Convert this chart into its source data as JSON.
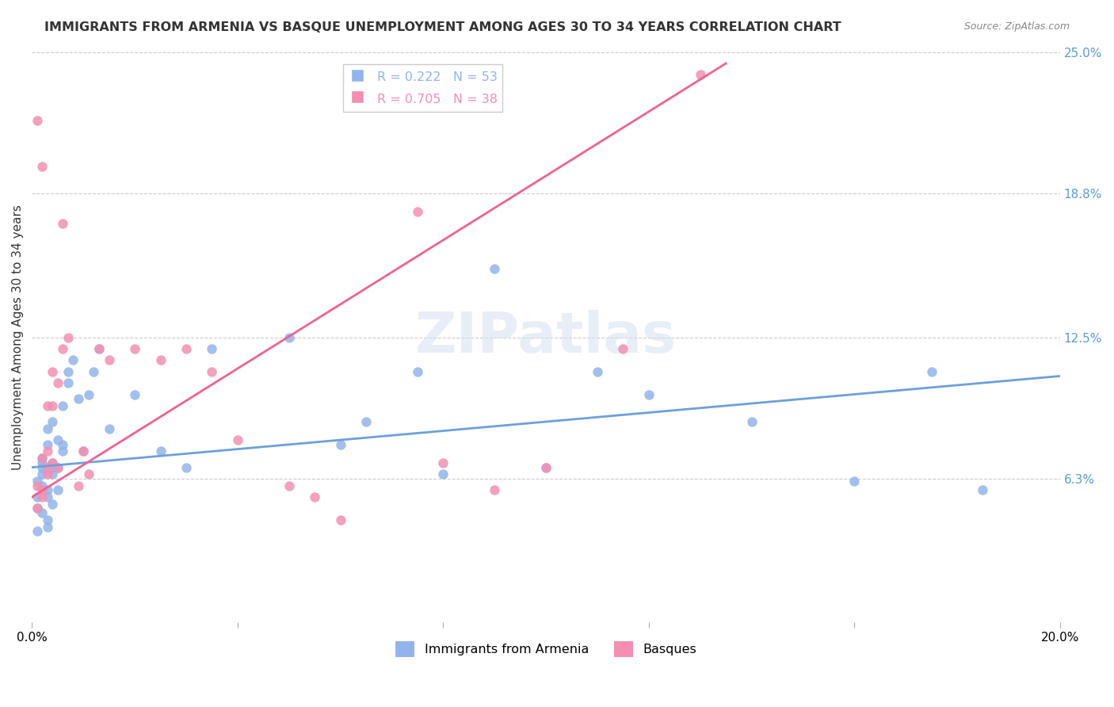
{
  "title": "IMMIGRANTS FROM ARMENIA VS BASQUE UNEMPLOYMENT AMONG AGES 30 TO 34 YEARS CORRELATION CHART",
  "source": "Source: ZipAtlas.com",
  "ylabel": "Unemployment Among Ages 30 to 34 years",
  "xlabel": "",
  "xlim": [
    0.0,
    0.2
  ],
  "ylim": [
    0.0,
    0.25
  ],
  "yticks": [
    0.0,
    0.063,
    0.125,
    0.188,
    0.25
  ],
  "ytick_labels": [
    "",
    "6.3%",
    "12.5%",
    "18.8%",
    "25.0%"
  ],
  "xticks": [
    0.0,
    0.04,
    0.08,
    0.12,
    0.16,
    0.2
  ],
  "xtick_labels": [
    "0.0%",
    "",
    "",
    "",
    "",
    "20.0%"
  ],
  "legend_r1": "R = 0.222   N = 53",
  "legend_r2": "R = 0.705   N = 38",
  "color_blue": "#92b4ec",
  "color_pink": "#f48fb1",
  "line_blue": "#6ca0dc",
  "line_pink": "#f06292",
  "watermark": "ZIPatlas",
  "armenia_scatter_x": [
    0.002,
    0.001,
    0.003,
    0.002,
    0.001,
    0.004,
    0.005,
    0.003,
    0.002,
    0.001,
    0.006,
    0.004,
    0.003,
    0.005,
    0.007,
    0.003,
    0.002,
    0.004,
    0.006,
    0.008,
    0.002,
    0.003,
    0.005,
    0.004,
    0.002,
    0.007,
    0.003,
    0.001,
    0.006,
    0.004,
    0.009,
    0.012,
    0.011,
    0.01,
    0.013,
    0.025,
    0.03,
    0.02,
    0.015,
    0.035,
    0.05,
    0.06,
    0.075,
    0.065,
    0.08,
    0.09,
    0.1,
    0.11,
    0.12,
    0.14,
    0.16,
    0.175,
    0.185
  ],
  "armenia_scatter_y": [
    0.065,
    0.055,
    0.045,
    0.06,
    0.05,
    0.07,
    0.068,
    0.058,
    0.072,
    0.062,
    0.075,
    0.065,
    0.055,
    0.08,
    0.11,
    0.078,
    0.068,
    0.088,
    0.095,
    0.115,
    0.048,
    0.042,
    0.058,
    0.052,
    0.07,
    0.105,
    0.085,
    0.04,
    0.078,
    0.068,
    0.098,
    0.11,
    0.1,
    0.075,
    0.12,
    0.075,
    0.068,
    0.1,
    0.085,
    0.12,
    0.125,
    0.078,
    0.11,
    0.088,
    0.065,
    0.155,
    0.068,
    0.11,
    0.1,
    0.088,
    0.062,
    0.11,
    0.058
  ],
  "basque_scatter_x": [
    0.001,
    0.002,
    0.003,
    0.001,
    0.004,
    0.002,
    0.005,
    0.003,
    0.001,
    0.002,
    0.006,
    0.004,
    0.003,
    0.005,
    0.007,
    0.003,
    0.002,
    0.004,
    0.006,
    0.009,
    0.011,
    0.01,
    0.013,
    0.015,
    0.02,
    0.025,
    0.03,
    0.035,
    0.04,
    0.05,
    0.055,
    0.06,
    0.075,
    0.08,
    0.09,
    0.1,
    0.115,
    0.13
  ],
  "basque_scatter_y": [
    0.06,
    0.055,
    0.065,
    0.05,
    0.07,
    0.072,
    0.068,
    0.075,
    0.22,
    0.2,
    0.175,
    0.11,
    0.095,
    0.105,
    0.125,
    0.068,
    0.058,
    0.095,
    0.12,
    0.06,
    0.065,
    0.075,
    0.12,
    0.115,
    0.12,
    0.115,
    0.12,
    0.11,
    0.08,
    0.06,
    0.055,
    0.045,
    0.18,
    0.07,
    0.058,
    0.068,
    0.12,
    0.24
  ],
  "armenia_line_x": [
    0.0,
    0.2
  ],
  "armenia_line_y": [
    0.068,
    0.108
  ],
  "basque_line_x": [
    0.0,
    0.135
  ],
  "basque_line_y": [
    0.055,
    0.245
  ]
}
